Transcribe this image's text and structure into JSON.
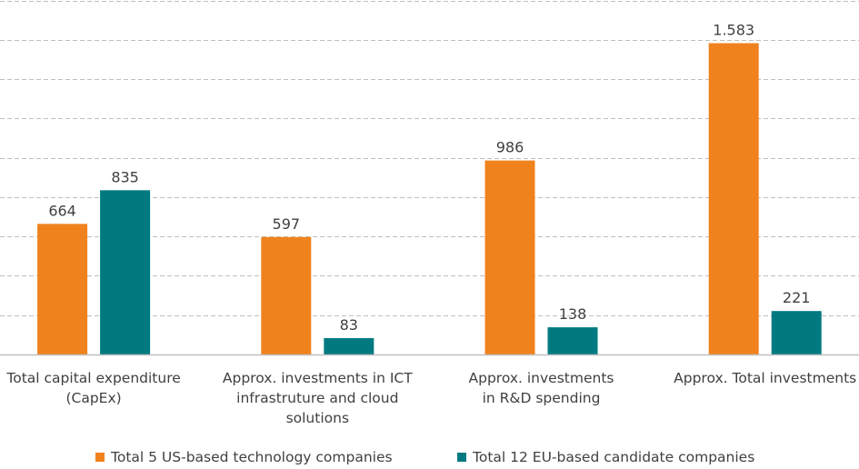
{
  "chart_data": {
    "type": "bar",
    "title": "",
    "xlabel": "",
    "ylabel": "",
    "ylim": [
      0,
      1800
    ],
    "grid": true,
    "grid_step": 200,
    "y_tick_labels_visible": false,
    "legend_position": "bottom",
    "categories": [
      [
        "Total capital expenditure",
        "(CapEx)"
      ],
      [
        "Approx. investments in ICT",
        "infrastruture and cloud",
        "solutions"
      ],
      [
        "Approx. investments",
        "in R&D spending"
      ],
      [
        "Approx. Total investments"
      ]
    ],
    "series": [
      {
        "name": "Total 5 US-based technology companies",
        "color": "#F0821E",
        "values": [
          664,
          597,
          986,
          1583
        ],
        "labels": [
          "664",
          "597",
          "986",
          "1.583"
        ]
      },
      {
        "name": "Total 12 EU-based candidate companies",
        "color": "#007A80",
        "values": [
          835,
          83,
          138,
          221
        ],
        "labels": [
          "835",
          "83",
          "138",
          "221"
        ]
      }
    ]
  }
}
